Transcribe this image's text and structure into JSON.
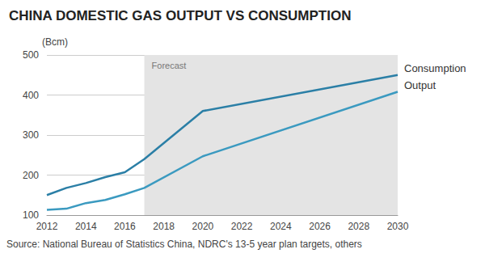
{
  "chart_data": {
    "type": "line",
    "title": "CHINA DOMESTIC GAS OUTPUT VS CONSUMPTION",
    "y_label": "(Bcm)",
    "source": "Source: National Bureau of Statistics China, NDRC's 13-5 year plan targets, others",
    "x": [
      2012,
      2013,
      2014,
      2015,
      2016,
      2017,
      2020,
      2030
    ],
    "series": [
      {
        "name": "Consumption",
        "color": "#2b7fa6",
        "values": [
          150,
          168,
          180,
          195,
          207,
          240,
          360,
          450
        ]
      },
      {
        "name": "Output",
        "color": "#3b9ac0",
        "values": [
          113,
          116,
          130,
          138,
          152,
          168,
          247,
          408
        ]
      }
    ],
    "annotations": [
      {
        "text": "Forecast",
        "x": [
          2017,
          2030
        ]
      }
    ],
    "xlim": [
      2012,
      2030
    ],
    "xticks": [
      2012,
      2014,
      2016,
      2018,
      2020,
      2022,
      2024,
      2026,
      2028,
      2030
    ],
    "ylim": [
      100,
      500
    ],
    "yticks": [
      100,
      200,
      300,
      400,
      500
    ],
    "grid": true
  }
}
